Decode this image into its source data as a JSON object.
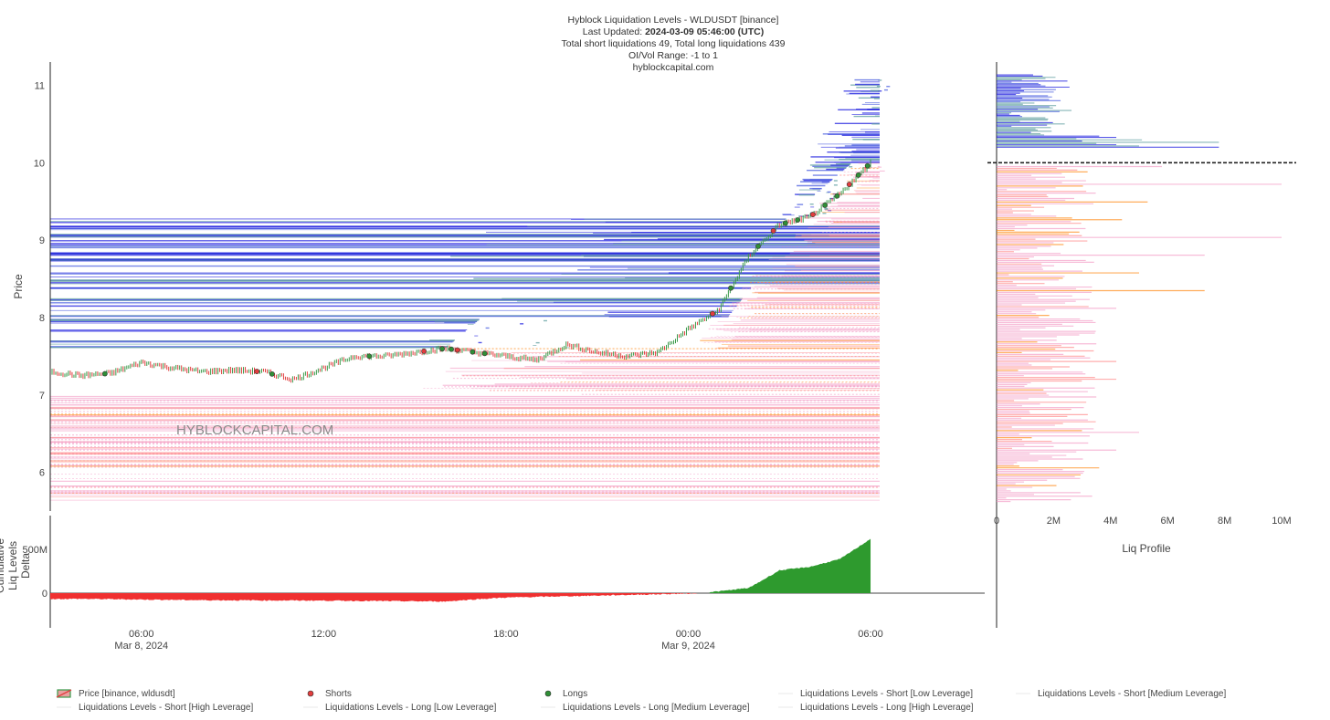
{
  "title": {
    "line1": "Hyblock Liquidation Levels - WLDUSDT [binance]",
    "line2_prefix": "Last Updated: ",
    "line2_value": "2024-03-09 05:46:00 (UTC)",
    "line3": "Total short liquidations 49, Total long liquidations 439",
    "line4": "OI/Vol Range: -1 to 1",
    "line5": "hyblockcapital.com"
  },
  "watermark": "HYBLOCKCAPITAL.COM",
  "colors": {
    "price_up": "#3a9a4a",
    "price_down": "#e04040",
    "shorts_dot": "#e23d3d",
    "longs_dot": "#2f8f36",
    "short_low": "#5f9ea0",
    "short_medium": "#4a5ee0",
    "short_high": "#2020e0",
    "long_low": "#f4a0c8",
    "long_medium": "#ff8c8c",
    "long_high": "#ff8c1a",
    "delta_negative": "#f03030",
    "delta_positive": "#2e9a2e",
    "current_price_line": "#222222"
  },
  "chart_data": [
    {
      "type": "line",
      "name": "price",
      "ylabel": "Price",
      "ylim": [
        5.5,
        11.3
      ],
      "y_ticks": [
        "6",
        "7",
        "8",
        "9",
        "10",
        "11"
      ],
      "x_ticks": [
        {
          "label": "06:00",
          "sub": "Mar 8, 2024"
        },
        {
          "label": "12:00",
          "sub": ""
        },
        {
          "label": "18:00",
          "sub": ""
        },
        {
          "label": "00:00",
          "sub": "Mar 9, 2024"
        },
        {
          "label": "06:00",
          "sub": ""
        }
      ],
      "series": [
        {
          "name": "Price [binance, wldusdt]",
          "x_hours": [
            0,
            1,
            2,
            3,
            4,
            5,
            6,
            7,
            8,
            9,
            10,
            11,
            12,
            13,
            14,
            15,
            16,
            17,
            18,
            19,
            20,
            21,
            22,
            23,
            24,
            25,
            26,
            27,
            28,
            29,
            30
          ],
          "values": [
            7.25,
            7.35,
            7.3,
            7.3,
            7.25,
            7.28,
            7.42,
            7.35,
            7.3,
            7.32,
            7.3,
            7.2,
            7.35,
            7.5,
            7.5,
            7.55,
            7.6,
            7.55,
            7.5,
            7.45,
            7.65,
            7.55,
            7.5,
            7.55,
            7.85,
            8.1,
            8.8,
            9.2,
            9.3,
            9.6,
            10.0
          ]
        }
      ],
      "current_price": 10.0,
      "short_liq_levels_range": [
        7.6,
        11.1
      ],
      "long_liq_levels_range": [
        5.6,
        10.0
      ]
    },
    {
      "type": "area",
      "name": "delta",
      "ylabel_lines": [
        "Cumulative",
        "Liq Levels",
        "Delta"
      ],
      "y_ticks": [
        "0",
        "500M"
      ],
      "x_hours": [
        0,
        4,
        8,
        12,
        16,
        17,
        18,
        22,
        24,
        25,
        26,
        27,
        28,
        29,
        30
      ],
      "values_millions": [
        -70,
        -65,
        -80,
        -85,
        -95,
        -70,
        -50,
        -20,
        -5,
        20,
        60,
        260,
        300,
        390,
        620
      ]
    },
    {
      "type": "bar",
      "name": "liq-profile",
      "xlabel": "Liq Profile",
      "x_ticks": [
        "0",
        "2M",
        "4M",
        "6M",
        "8M",
        "10M"
      ],
      "xlim": [
        0,
        10.5
      ],
      "short_side_millions": [
        7.8,
        5.0,
        4.2,
        3.5,
        7.8,
        3.0,
        5.1,
        2.8,
        4.2,
        3.6
      ],
      "long_side_millions": [
        5.8,
        10.0,
        5.3,
        4.4,
        10.0,
        7.3,
        5.0,
        7.3,
        4.2,
        2.7,
        3.5,
        4.2,
        4.2,
        3.5,
        3.2,
        5.0,
        4.2,
        3.6,
        2.1
      ]
    }
  ],
  "legend": [
    {
      "label": "Price [binance, wldusdt]",
      "icon": "candle-icon"
    },
    {
      "label": "Shorts",
      "icon": "red-dot-icon"
    },
    {
      "label": "Longs",
      "icon": "green-dot-icon"
    },
    {
      "label": "Liquidations Levels - Short [Low Leverage]",
      "icon": "line-icon"
    },
    {
      "label": "Liquidations Levels - Short [Medium Leverage]",
      "icon": "line-icon"
    },
    {
      "label": "Liquidations Levels - Short [High Leverage]",
      "icon": "line-icon"
    },
    {
      "label": "Liquidations Levels - Long [Low Leverage]",
      "icon": "line-icon"
    },
    {
      "label": "Liquidations Levels - Long [Medium Leverage]",
      "icon": "line-icon"
    },
    {
      "label": "Liquidations Levels - Long [High Leverage]",
      "icon": "line-icon"
    }
  ]
}
